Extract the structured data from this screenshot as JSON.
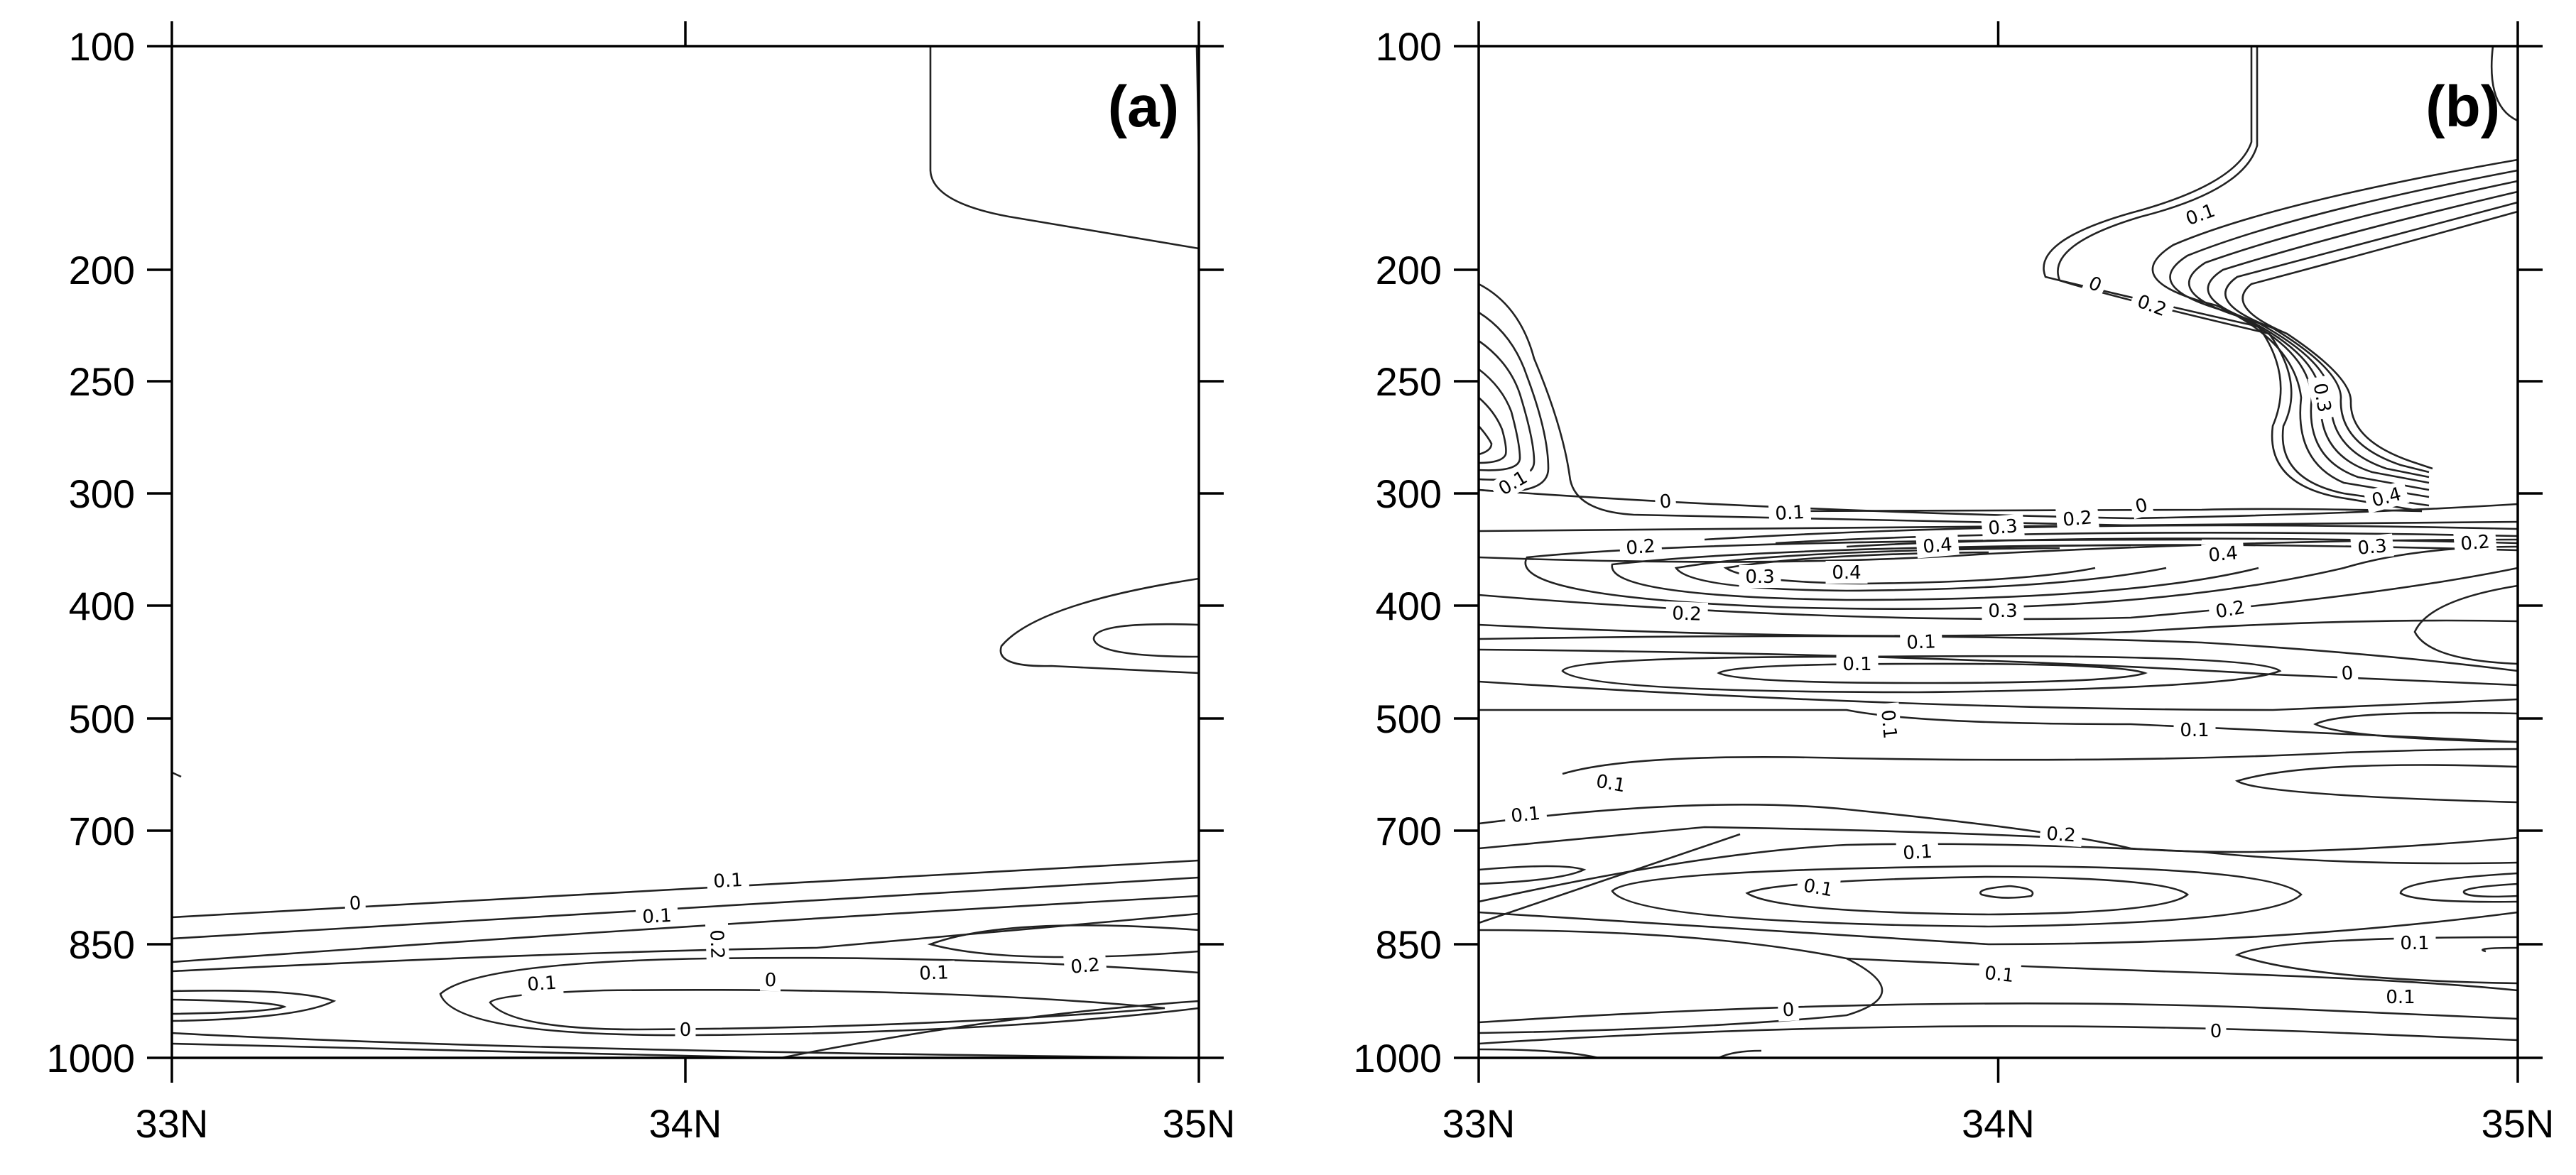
{
  "chart_data": [
    {
      "type": "contour",
      "panel_label": "(a)",
      "x_ticks": [
        "33N",
        "34N",
        "35N"
      ],
      "y_ticks": [
        "100",
        "200",
        "250",
        "300",
        "400",
        "500",
        "700",
        "850",
        "1000"
      ],
      "xlim": [
        33,
        35
      ],
      "y_axis": "pressure, reversed, log-like spacing",
      "contour_labels": [
        "0",
        "0.1",
        "0.1",
        "0.2",
        "0.1",
        "0",
        "0.1",
        "0.2",
        "0"
      ]
    },
    {
      "type": "contour",
      "panel_label": "(b)",
      "x_ticks": [
        "33N",
        "34N",
        "35N"
      ],
      "y_ticks": [
        "100",
        "200",
        "250",
        "300",
        "400",
        "500",
        "700",
        "850",
        "1000"
      ],
      "xlim": [
        33,
        35
      ],
      "y_axis": "pressure, reversed, log-like spacing",
      "contour_labels": [
        "0.1",
        "0",
        "0.2",
        "0.3",
        "0.4",
        "0.1",
        "0",
        "0.1",
        "0.2",
        "0",
        "0.2",
        "0.3",
        "0.4",
        "0.4",
        "0.3",
        "0.2",
        "0.4",
        "0.3",
        "0.2",
        "0.2",
        "0.3",
        "0.1",
        "0",
        "0.1",
        "0.1",
        "0.1",
        "0.1",
        "0.2",
        "0.1",
        "0.1",
        "0.1",
        "0.1",
        "0.1",
        "0.1",
        "0",
        "0"
      ]
    }
  ]
}
